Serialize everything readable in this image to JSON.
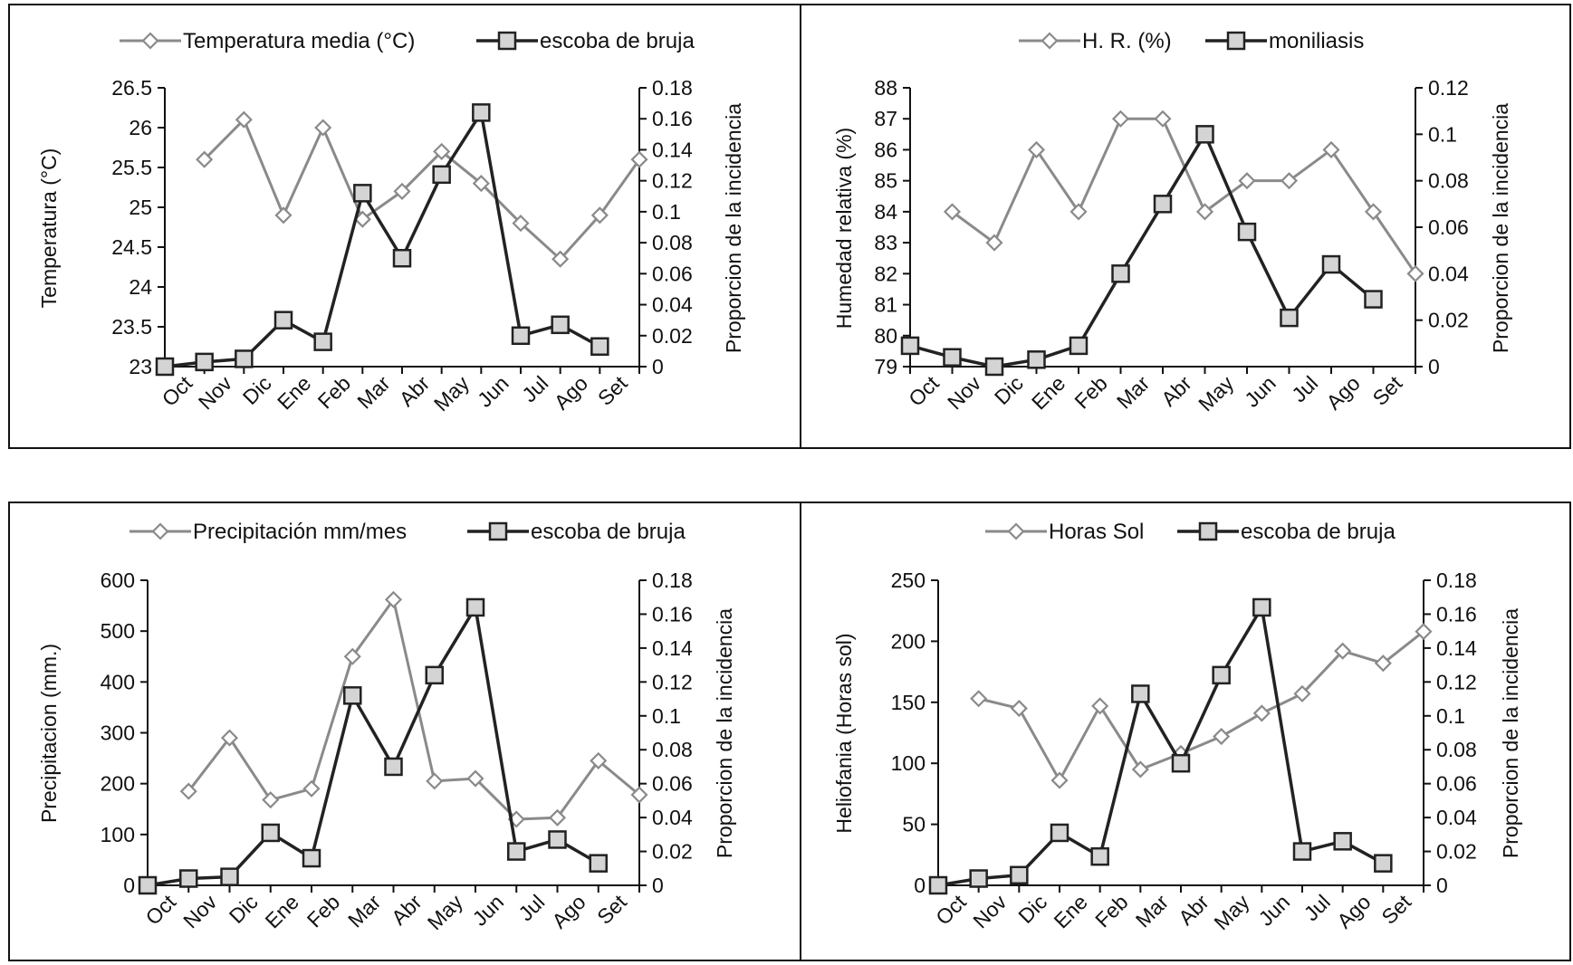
{
  "chart_data": [
    {
      "type": "line",
      "panel": "top-left",
      "categories": [
        "Oct",
        "Nov",
        "Dic",
        "Ene",
        "Feb",
        "Mar",
        "Abr",
        "May",
        "Jun",
        "Jul",
        "Ago",
        "Set"
      ],
      "ylabel": "Temperatura (°C)",
      "ylabel_right": "Proporcion de la incidencia",
      "ylim": [
        23,
        26.5
      ],
      "yticks": [
        "23",
        "23.5",
        "24",
        "24.5",
        "25",
        "25.5",
        "26",
        "26.5"
      ],
      "ylim_right": [
        0,
        0.18
      ],
      "yticks_right": [
        "0",
        "0.02",
        "0.04",
        "0.06",
        "0.08",
        "0.1",
        "0.12",
        "0.14",
        "0.16",
        "0.18"
      ],
      "legend_position": "top",
      "series": [
        {
          "name": "Temperatura media (°C)",
          "axis": "left",
          "marker": "diamond",
          "color": "#8a8a8a",
          "x": [
            1,
            2,
            3,
            4,
            5,
            6,
            7,
            8,
            9,
            10,
            11,
            12
          ],
          "values": [
            25.6,
            26.1,
            24.9,
            26.0,
            24.85,
            25.2,
            25.7,
            25.3,
            24.8,
            24.35,
            24.9,
            25.6
          ]
        },
        {
          "name": "escoba de bruja",
          "axis": "right",
          "marker": "square",
          "color": "#222222",
          "x": [
            0,
            1,
            2,
            3,
            4,
            5,
            6,
            7,
            8,
            9,
            10,
            11
          ],
          "values": [
            0,
            0.003,
            0.005,
            0.03,
            0.016,
            0.112,
            0.07,
            0.124,
            0.164,
            0.02,
            0.027,
            0.013
          ]
        }
      ]
    },
    {
      "type": "line",
      "panel": "top-right",
      "categories": [
        "Oct",
        "Nov",
        "Dic",
        "Ene",
        "Feb",
        "Mar",
        "Abr",
        "May",
        "Jun",
        "Jul",
        "Ago",
        "Set"
      ],
      "ylabel": "Humedad relativa (%)",
      "ylabel_right": "Proporcion de la incidencia",
      "ylim": [
        79,
        88
      ],
      "yticks": [
        "79",
        "80",
        "81",
        "82",
        "83",
        "84",
        "85",
        "86",
        "87",
        "88"
      ],
      "ylim_right": [
        0,
        0.12
      ],
      "yticks_right": [
        "0",
        "0.02",
        "0.04",
        "0.06",
        "0.08",
        "0.1",
        "0.12"
      ],
      "legend_position": "top",
      "series": [
        {
          "name": "H. R. (%)",
          "axis": "left",
          "marker": "diamond",
          "color": "#8a8a8a",
          "x": [
            1,
            2,
            3,
            4,
            5,
            6,
            7,
            8,
            9,
            10,
            11,
            12
          ],
          "values": [
            84,
            83,
            86,
            84,
            87,
            87,
            84,
            85,
            85,
            86,
            84,
            82
          ]
        },
        {
          "name": "moniliasis",
          "axis": "right",
          "marker": "square",
          "color": "#222222",
          "x": [
            0,
            1,
            2,
            3,
            4,
            5,
            6,
            7,
            8,
            9,
            10,
            11
          ],
          "values": [
            0.009,
            0.004,
            0,
            0.003,
            0.009,
            0.04,
            0.07,
            0.1,
            0.058,
            0.021,
            0.044,
            0.029
          ]
        }
      ]
    },
    {
      "type": "line",
      "panel": "bottom-left",
      "categories": [
        "Oct",
        "Nov",
        "Dic",
        "Ene",
        "Feb",
        "Mar",
        "Abr",
        "May",
        "Jun",
        "Jul",
        "Ago",
        "Set"
      ],
      "ylabel": "Precipitacion (mm.)",
      "ylabel_right": "Proporcion de la incidencia",
      "ylim": [
        0,
        600
      ],
      "yticks": [
        "0",
        "100",
        "200",
        "300",
        "400",
        "500",
        "600"
      ],
      "ylim_right": [
        0,
        0.18
      ],
      "yticks_right": [
        "0",
        "0.02",
        "0.04",
        "0.06",
        "0.08",
        "0.1",
        "0.12",
        "0.14",
        "0.16",
        "0.18"
      ],
      "legend_position": "top",
      "series": [
        {
          "name": "Precipitación mm/mes",
          "axis": "left",
          "marker": "diamond",
          "color": "#8a8a8a",
          "x": [
            1,
            2,
            3,
            4,
            5,
            6,
            7,
            8,
            9,
            10,
            11,
            12
          ],
          "values": [
            185,
            290,
            168,
            190,
            450,
            562,
            205,
            210,
            130,
            133,
            245,
            178
          ]
        },
        {
          "name": "escoba de bruja",
          "axis": "right",
          "marker": "square",
          "color": "#222222",
          "x": [
            0,
            1,
            2,
            3,
            4,
            5,
            6,
            7,
            8,
            9,
            10,
            11
          ],
          "values": [
            0,
            0.004,
            0.005,
            0.031,
            0.016,
            0.112,
            0.07,
            0.124,
            0.164,
            0.02,
            0.027,
            0.013
          ]
        }
      ]
    },
    {
      "type": "line",
      "panel": "bottom-right",
      "categories": [
        "Oct",
        "Nov",
        "Dic",
        "Ene",
        "Feb",
        "Mar",
        "Abr",
        "May",
        "Jun",
        "Jul",
        "Ago",
        "Set"
      ],
      "ylabel": "Heliofania (Horas sol)",
      "ylabel_right": "Proporcion de la incidencia",
      "ylim": [
        0,
        250
      ],
      "yticks": [
        "0",
        "50",
        "100",
        "150",
        "200",
        "250"
      ],
      "ylim_right": [
        0,
        0.18
      ],
      "yticks_right": [
        "0",
        "0.02",
        "0.04",
        "0.06",
        "0.08",
        "0.1",
        "0.12",
        "0.14",
        "0.16",
        "0.18"
      ],
      "legend_position": "top",
      "series": [
        {
          "name": "Horas Sol",
          "axis": "left",
          "marker": "diamond",
          "color": "#8a8a8a",
          "x": [
            1,
            2,
            3,
            4,
            5,
            6,
            7,
            8,
            9,
            10,
            11,
            12
          ],
          "values": [
            153,
            145,
            86,
            147,
            95,
            108,
            122,
            141,
            157,
            192,
            182,
            208
          ]
        },
        {
          "name": "escoba de bruja",
          "axis": "right",
          "marker": "square",
          "color": "#222222",
          "x": [
            0,
            1,
            2,
            3,
            4,
            5,
            6,
            7,
            8,
            9,
            10,
            11
          ],
          "values": [
            0,
            0.004,
            0.006,
            0.031,
            0.017,
            0.113,
            0.072,
            0.124,
            0.164,
            0.02,
            0.026,
            0.013
          ]
        }
      ]
    }
  ]
}
